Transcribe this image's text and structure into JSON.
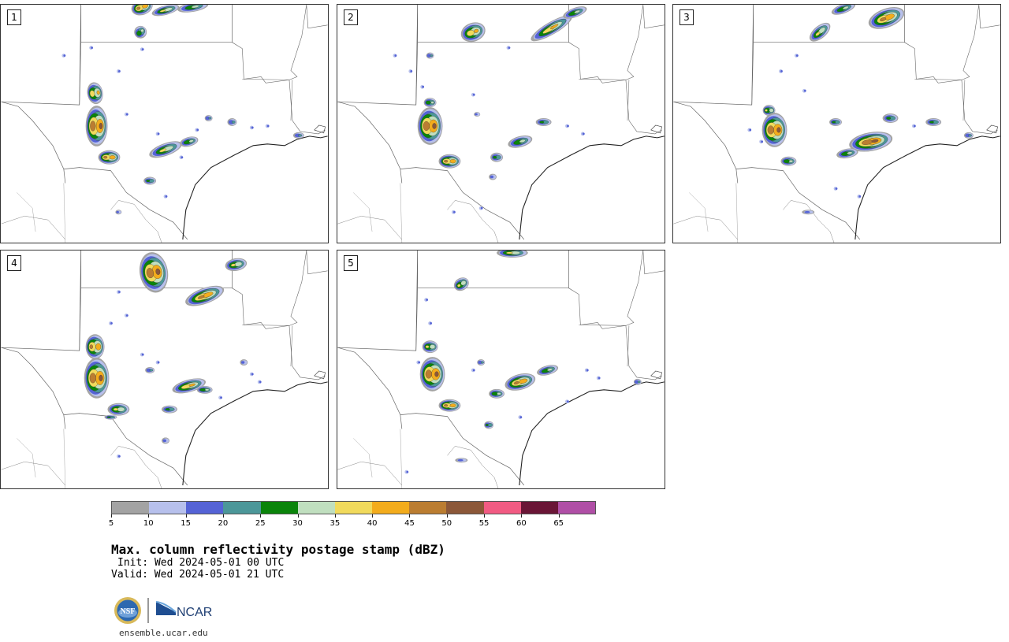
{
  "panels": [
    {
      "label": "1"
    },
    {
      "label": "2"
    },
    {
      "label": "3"
    },
    {
      "label": "4"
    },
    {
      "label": "5"
    }
  ],
  "colorbar": {
    "colors": [
      "#a3a3a3",
      "#b7c0ec",
      "#5563d6",
      "#4c9799",
      "#0a840a",
      "#c0dfbf",
      "#f1da5c",
      "#f3ac1c",
      "#bb7d31",
      "#8c5839",
      "#f25b83",
      "#6a1536",
      "#b04fa6"
    ],
    "ticks": [
      "5",
      "10",
      "15",
      "20",
      "25",
      "30",
      "35",
      "40",
      "45",
      "50",
      "55",
      "60",
      "65"
    ]
  },
  "title": "Max. column reflectivity postage stamp (dBZ)",
  "init": "Init: Wed 2024-05-01 00 UTC",
  "valid": "Valid: Wed 2024-05-01 21 UTC",
  "logos": {
    "nsf": "NSF",
    "ncar": "NCAR"
  },
  "url": "ensemble.ucar.edu"
}
